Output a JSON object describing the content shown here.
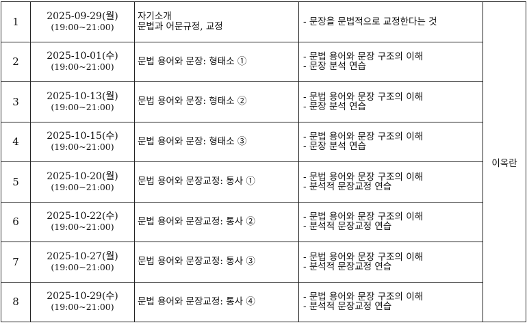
{
  "instructor": "이옥란",
  "rows": [
    {
      "no": "1",
      "date": "2025-09-29(월)",
      "time": "(19:00~21:00)",
      "topic": [
        "자기소개",
        "문법과 어문규정, 교정"
      ],
      "content": [
        "- 문장을 문법적으로 교정한다는 것"
      ]
    },
    {
      "no": "2",
      "date": "2025-10-01(수)",
      "time": "(19:00~21:00)",
      "topic": [
        "문법 용어와 문장: 형태소 ①"
      ],
      "content": [
        "- 문법 용어와 문장 구조의 이해",
        "- 문장 분석 연습"
      ]
    },
    {
      "no": "3",
      "date": "2025-10-13(월)",
      "time": "(19:00~21:00)",
      "topic": [
        "문법 용어와 문장: 형태소 ②"
      ],
      "content": [
        "- 문법 용어와 문장 구조의 이해",
        "- 문장 분석 연습"
      ]
    },
    {
      "no": "4",
      "date": "2025-10-15(수)",
      "time": "(19:00~21:00)",
      "topic": [
        "문법 용어와 문장: 형태소 ③"
      ],
      "content": [
        "- 문법 용어와 문장 구조의 이해",
        "- 문장 분석 연습"
      ]
    },
    {
      "no": "5",
      "date": "2025-10-20(월)",
      "time": "(19:00~21:00)",
      "topic": [
        "문법 용어와 문장교정: 통사 ①"
      ],
      "content": [
        "- 문법 용어와 문장 구조의 이해",
        "- 분석적 문장교정 연습"
      ]
    },
    {
      "no": "6",
      "date": "2025-10-22(수)",
      "time": "(19:00~21:00)",
      "topic": [
        "문법 용어와 문장교정: 통사 ②"
      ],
      "content": [
        "- 문법 용어와 문장 구조의 이해",
        "- 분석적 문장교정 연습"
      ]
    },
    {
      "no": "7",
      "date": "2025-10-27(월)",
      "time": "(19:00~21:00)",
      "topic": [
        "문법 용어와 문장교정: 통사 ③"
      ],
      "content": [
        "- 문법 용어와 문장 구조의 이해",
        "- 분석적 문장교정 연습"
      ]
    },
    {
      "no": "8",
      "date": "2025-10-29(수)",
      "time": "(19:00~21:00)",
      "topic": [
        "문법 용어와 문장교정: 통사 ④"
      ],
      "content": [
        "- 문법 용어와 문장 구조의 이해",
        "- 분석적 문장교정 연습"
      ]
    }
  ]
}
